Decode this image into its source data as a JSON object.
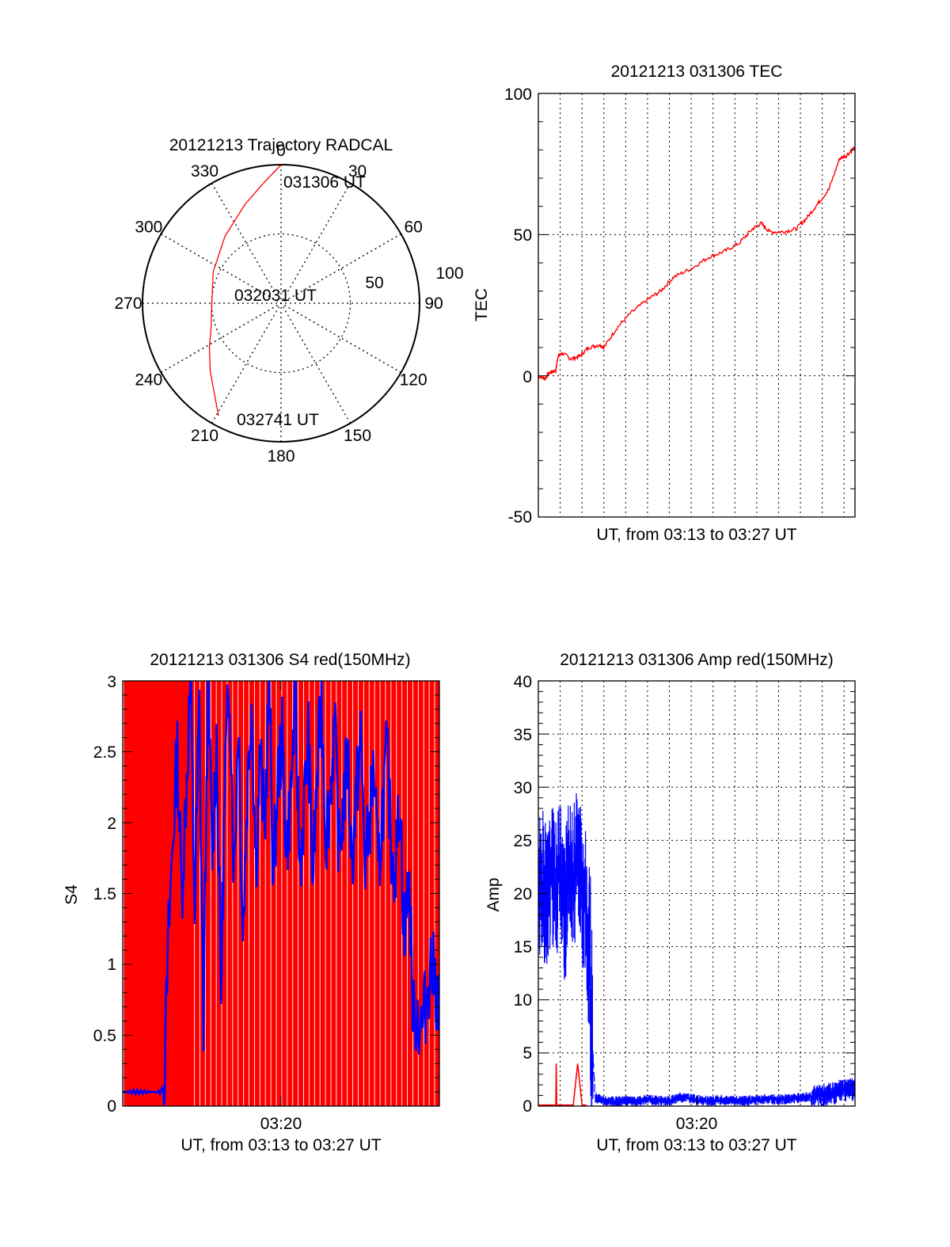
{
  "chart_data": [
    {
      "type": "polar",
      "title": "20121213 Trajectory RADCAL",
      "angle_labels": [
        "0",
        "30",
        "60",
        "90",
        "120",
        "150",
        "180",
        "210",
        "240",
        "270",
        "300",
        "330"
      ],
      "ring_labels": [
        "50",
        "100"
      ],
      "rlim": [
        0,
        100
      ],
      "grid": true,
      "series": [
        {
          "color": "#ff0000",
          "azimuth_deg": [
            0,
            352,
            340,
            320,
            295,
            270,
            252,
            238,
            226,
            215,
            209
          ],
          "radius": [
            100,
            88,
            76,
            63,
            54,
            50,
            53,
            61,
            71,
            83,
            93
          ]
        }
      ],
      "annotations": [
        "031306 UT",
        "032031 UT",
        "032741 UT"
      ]
    },
    {
      "type": "line",
      "title": "20121213 031306 TEC",
      "xlabel": "UT, from 03:13 to 03:27 UT",
      "ylabel": "TEC",
      "xlim": [
        0,
        14.5
      ],
      "ylim": [
        -50,
        100
      ],
      "yticks": [
        "-50",
        "0",
        "50",
        "100"
      ],
      "grid": true,
      "series": [
        {
          "color": "#ff0000",
          "x": [
            0,
            0.3,
            0.5,
            0.8,
            0.9,
            1.1,
            1.5,
            1.9,
            2.3,
            2.8,
            3.0,
            3.6,
            4.2,
            5.0,
            5.6,
            6.2,
            7.0,
            7.8,
            8.5,
            9.2,
            9.8,
            10.2,
            10.6,
            11.2,
            11.8,
            12.3,
            12.8,
            13.3,
            13.8,
            14.1,
            14.5
          ],
          "y": [
            0,
            -1,
            1,
            2,
            7,
            8,
            6,
            7,
            10,
            11,
            10,
            17,
            22,
            27,
            30,
            35,
            38,
            42,
            44,
            47,
            52,
            54,
            51,
            51,
            52,
            56,
            61,
            66,
            77,
            78,
            81
          ]
        }
      ]
    },
    {
      "type": "line",
      "title": "20121213 031306 S4 red(150MHz)",
      "xlabel": "UT, from 03:13 to 03:27 UT",
      "ylabel": "S4",
      "xlim": [
        0,
        14.5
      ],
      "ylim": [
        0,
        3
      ],
      "xticks": [
        "03:20"
      ],
      "yticks": [
        "0",
        "0.5",
        "1",
        "1.5",
        "2",
        "2.5",
        "3"
      ],
      "grid": false,
      "series": [
        {
          "color": "#ff0000",
          "x": [
            0.05,
            0.25,
            0.45,
            0.65,
            0.85,
            1.05,
            1.25,
            1.45,
            1.65,
            1.85,
            2.05,
            2.25,
            2.45,
            2.65,
            2.85,
            3.05,
            3.3,
            3.55,
            3.8,
            4.05,
            4.3,
            4.55,
            4.8,
            5.05,
            5.3,
            5.55,
            5.8,
            6.05,
            6.3,
            6.55,
            6.8,
            7.05,
            7.3,
            7.55,
            7.8,
            8.05,
            8.3,
            8.55,
            8.8,
            9.05,
            9.3,
            9.55,
            9.8,
            10.05,
            10.3,
            10.55,
            10.8,
            11.05,
            11.3,
            11.55,
            11.8,
            12.05,
            12.3,
            12.55,
            12.8,
            13.05,
            13.3,
            13.55,
            13.8,
            14.05,
            14.3
          ],
          "y": [
            3,
            3,
            3,
            3,
            3,
            3,
            3,
            3,
            3,
            3,
            3,
            3,
            3,
            3,
            3,
            3,
            3,
            3,
            3,
            3,
            3,
            3,
            3,
            3,
            3,
            3,
            3,
            3,
            3,
            3,
            3,
            3,
            3,
            3,
            3,
            3,
            3,
            3,
            3,
            3,
            3,
            3,
            3,
            3,
            3,
            3,
            3,
            3,
            3,
            3,
            3,
            3,
            3,
            3,
            3,
            3,
            3,
            3,
            3,
            3,
            3
          ]
        },
        {
          "color": "#0000ff",
          "x": [
            0,
            0.5,
            1.0,
            1.5,
            1.9,
            2.1,
            2.3,
            2.5,
            2.7,
            2.9,
            3.1,
            3.3,
            3.5,
            3.7,
            3.9,
            4.1,
            4.3,
            4.5,
            4.7,
            4.9,
            5.1,
            5.3,
            5.5,
            5.7,
            5.9,
            6.1,
            6.3,
            6.5,
            6.7,
            6.9,
            7.1,
            7.3,
            7.5,
            7.7,
            7.9,
            8.1,
            8.3,
            8.5,
            8.7,
            8.9,
            9.1,
            9.3,
            9.5,
            9.7,
            9.9,
            10.1,
            10.3,
            10.5,
            10.7,
            10.9,
            11.1,
            11.3,
            11.5,
            11.7,
            11.9,
            12.1,
            12.3,
            12.5,
            12.7,
            12.9,
            13.1,
            13.3,
            13.5,
            13.7,
            13.9,
            14.1,
            14.3,
            14.5
          ],
          "y": [
            0.1,
            0.1,
            0.1,
            0.1,
            0.15,
            1.2,
            1.9,
            2.5,
            1.5,
            2.2,
            3,
            1.4,
            2.8,
            0.6,
            3,
            1.8,
            2.6,
            0.8,
            2.4,
            3,
            1.6,
            2.8,
            1.2,
            2.2,
            2.9,
            1.7,
            2.5,
            1.9,
            3,
            1.6,
            2.3,
            2.6,
            1.8,
            2.2,
            2.9,
            1.7,
            2.1,
            2.6,
            1.6,
            2.3,
            2.9,
            1.9,
            2.2,
            2.7,
            1.8,
            2.1,
            2.5,
            1.7,
            2.2,
            2.6,
            1.7,
            2.0,
            2.4,
            1.6,
            2.1,
            2.5,
            1.8,
            1.7,
            2.2,
            1.1,
            1.7,
            0.6,
            0.65,
            0.55,
            0.75,
            1.0,
            0.9,
            0.65
          ]
        }
      ]
    },
    {
      "type": "line",
      "title": "20121213 031306 Amp red(150MHz)",
      "xlabel": "UT, from 03:13 to 03:27 UT",
      "ylabel": "Amp",
      "xlim": [
        0,
        14.5
      ],
      "ylim": [
        0,
        40
      ],
      "xticks": [
        "03:20"
      ],
      "yticks": [
        "0",
        "5",
        "10",
        "15",
        "20",
        "25",
        "30",
        "35",
        "40"
      ],
      "grid": true,
      "series": [
        {
          "color": "#ff0000",
          "x": [
            0,
            0.5,
            0.8,
            0.82,
            0.84,
            1.2,
            1.6,
            1.8,
            2.0,
            2.2
          ],
          "y": [
            0.1,
            0.1,
            0.1,
            4,
            0.1,
            0.1,
            0.1,
            4,
            0.1,
            0.1
          ]
        },
        {
          "color": "#0000ff",
          "x": [
            0,
            0.2,
            0.4,
            0.6,
            0.8,
            1.0,
            1.2,
            1.4,
            1.6,
            1.8,
            2.0,
            2.2,
            2.4,
            2.6,
            3.0,
            3.5,
            4.0,
            4.5,
            5.0,
            5.5,
            6.0,
            6.5,
            7.0,
            7.5,
            8.0,
            8.5,
            9.0,
            9.5,
            10.0,
            10.5,
            11.0,
            11.5,
            12.0,
            12.5,
            13.0,
            13.5,
            14.0,
            14.5
          ],
          "y": [
            20,
            21,
            19,
            22,
            20,
            23,
            18,
            22,
            21,
            24,
            20,
            19,
            9,
            0.8,
            0.5,
            0.4,
            0.5,
            0.4,
            0.6,
            0.5,
            0.5,
            0.8,
            0.7,
            0.5,
            0.5,
            0.6,
            0.5,
            0.5,
            0.6,
            0.7,
            0.6,
            0.7,
            0.8,
            0.9,
            1.0,
            1.2,
            1.5,
            1.6
          ]
        }
      ]
    }
  ]
}
